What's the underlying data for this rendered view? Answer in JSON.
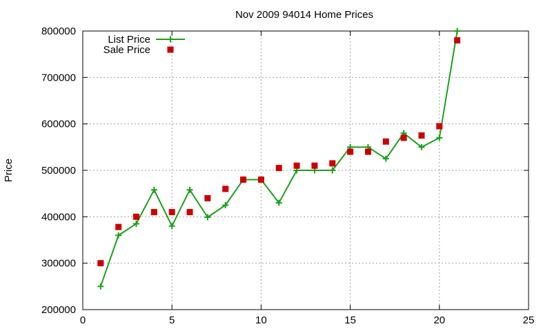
{
  "chart_data": {
    "type": "line",
    "title": "Nov 2009 94014 Home Prices",
    "xlabel": "",
    "ylabel": "Price",
    "xlim": [
      0,
      25
    ],
    "ylim": [
      200000,
      800000
    ],
    "x_ticks": [
      0,
      5,
      10,
      15,
      20,
      25
    ],
    "y_ticks": [
      200000,
      300000,
      400000,
      500000,
      600000,
      700000,
      800000
    ],
    "grid": true,
    "legend_position": "top-left",
    "series": [
      {
        "name": "List Price",
        "style": "line-with-plus-markers",
        "color": "#1aa01a",
        "x": [
          1,
          2,
          3,
          4,
          5,
          6,
          7,
          8,
          9,
          10,
          11,
          12,
          13,
          14,
          15,
          16,
          17,
          18,
          19,
          20,
          21
        ],
        "y": [
          250000,
          360000,
          385000,
          458000,
          380000,
          458000,
          399000,
          425000,
          480000,
          480000,
          430000,
          500000,
          500000,
          500000,
          550000,
          550000,
          525000,
          580000,
          550000,
          570000,
          800000
        ]
      },
      {
        "name": "Sale Price",
        "style": "square-markers",
        "color": "#cc0000",
        "x": [
          1,
          2,
          3,
          4,
          5,
          6,
          7,
          8,
          9,
          10,
          11,
          12,
          13,
          14,
          15,
          16,
          17,
          18,
          19,
          20,
          21
        ],
        "y": [
          300000,
          378000,
          400000,
          410000,
          410000,
          410000,
          440000,
          460000,
          480000,
          480000,
          505000,
          510000,
          510000,
          515000,
          540000,
          540000,
          562000,
          570000,
          575000,
          595000,
          780000
        ]
      }
    ]
  }
}
